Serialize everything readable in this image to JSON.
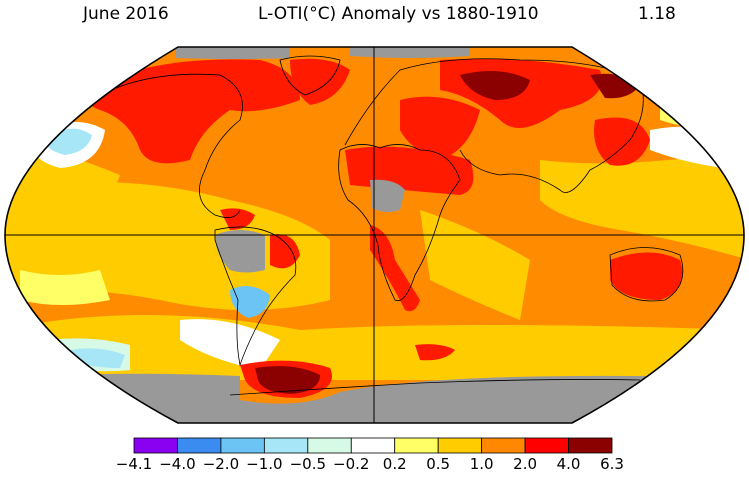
{
  "header": {
    "date": "June 2016",
    "title": "L-OTI(°C) Anomaly vs 1880-1910",
    "global_value": "1.18"
  },
  "legend": {
    "colors": [
      "#8a00f0",
      "#3a8cf0",
      "#6cc4f4",
      "#a6e6f6",
      "#d6fae6",
      "#ffffff",
      "#ffff66",
      "#ffcc00",
      "#ff8800",
      "#ff0000",
      "#8b0000"
    ],
    "ticks": [
      "−4.1",
      "−4.0",
      "−2.0",
      "−1.0",
      "−0.5",
      "−0.2",
      "0.2",
      "0.5",
      "1.0",
      "2.0",
      "4.0",
      "6.3"
    ]
  },
  "map_colors": {
    "ocean_base": "#ff8c00",
    "warm": "#ffcc00",
    "hot": "#ff1a00",
    "very_hot": "#8b0000",
    "mild": "#ffff66",
    "cool": "#a6e6f6",
    "cold": "#6cc4f4",
    "missing": "#999999",
    "white": "#ffffff"
  }
}
